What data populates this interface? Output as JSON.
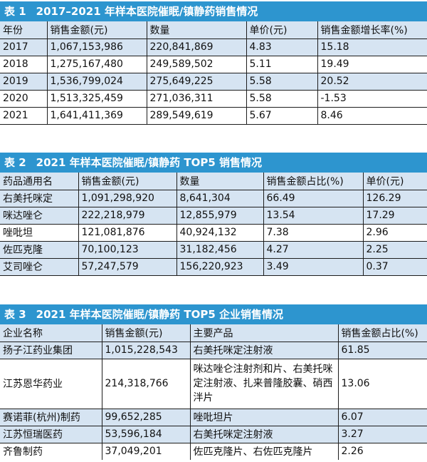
{
  "table1": {
    "number": "表 1",
    "title": "2017–2021 年样本医院催眠/镇静药销售情况",
    "headers": [
      "年份",
      "销售金额(元)",
      "数量",
      "单价(元)",
      "销售金额增长率(%)"
    ],
    "rows": [
      [
        "2017",
        "1,067,153,986",
        "220,841,869",
        "4.83",
        "15.18"
      ],
      [
        "2018",
        "1,275,167,480",
        "249,589,502",
        "5.11",
        "19.49"
      ],
      [
        "2019",
        "1,536,799,024",
        "275,649,225",
        "5.58",
        "20.52"
      ],
      [
        "2020",
        "1,513,325,459",
        "271,036,311",
        "5.58",
        "-1.53"
      ],
      [
        "2021",
        "1,641,411,369",
        "289,549,619",
        "5.67",
        "8.46"
      ]
    ]
  },
  "table2": {
    "number": "表 2",
    "title": "2021 年样本医院催眠/镇静药 TOP5 销售情况",
    "headers": [
      "药品通用名",
      "销售金额(元)",
      "数量",
      "销售金额占比(%)",
      "单价(元)"
    ],
    "rows": [
      [
        "右美托咪定",
        "1,091,298,920",
        "8,641,304",
        "66.49",
        "126.29"
      ],
      [
        "咪达唑仑",
        "222,218,979",
        "12,855,979",
        "13.54",
        "17.29"
      ],
      [
        "唑吡坦",
        "121,081,876",
        "40,924,132",
        "7.38",
        "2.96"
      ],
      [
        "佐匹克隆",
        "70,100,123",
        "31,182,456",
        "4.27",
        "2.25"
      ],
      [
        "艾司唑仑",
        "57,247,579",
        "156,220,923",
        "3.49",
        "0.37"
      ]
    ]
  },
  "table3": {
    "number": "表 3",
    "title": "2021 年样本医院催眠/镇静药 TOP5 企业销售情况",
    "headers": [
      "企业名称",
      "销售金额(元)",
      "主要产品",
      "销售金额占比(%)"
    ],
    "rows": [
      [
        "扬子江药业集团",
        "1,015,228,543",
        "右美托咪定注射液",
        "61.85"
      ],
      [
        "江苏恩华药业",
        "214,318,766",
        "咪达唑仑注射剂和片、右美托咪定注射液、扎来普隆胶囊、硝西泮片",
        "13.06"
      ],
      [
        "赛诺菲(杭州)制药",
        "99,652,285",
        "唑吡坦片",
        "6.07"
      ],
      [
        "江苏恒瑞医药",
        "53,596,184",
        "右美托咪定注射液",
        "3.27"
      ],
      [
        "齐鲁制药",
        "37,049,201",
        "佐匹克隆片、右佐匹克隆片",
        "2.26"
      ]
    ]
  },
  "colors": {
    "title_bar": "#2d95cf",
    "shade_row": "#d6e4f2",
    "rule": "#1d1d1d"
  }
}
